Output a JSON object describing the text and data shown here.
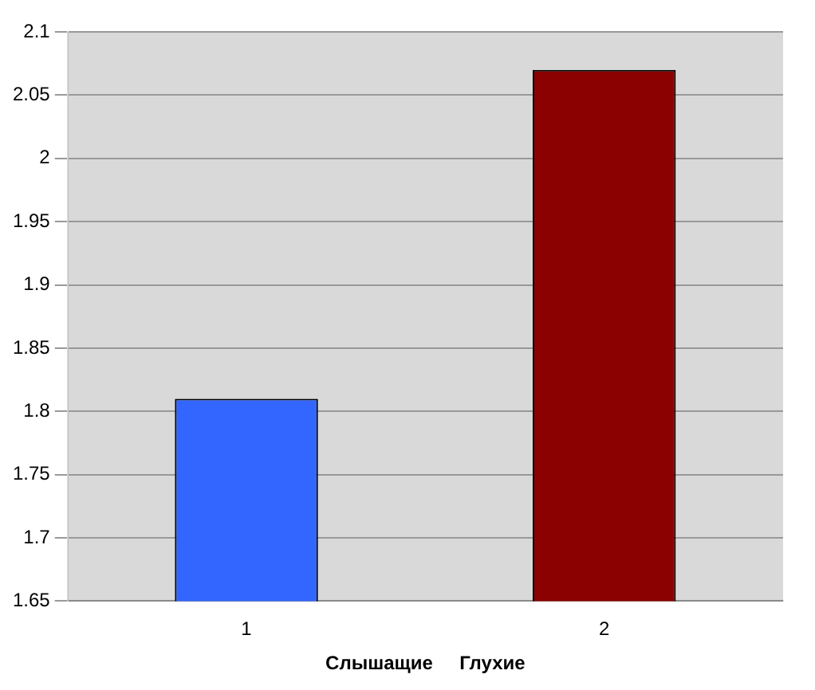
{
  "chart_data": {
    "type": "bar",
    "xlabel": "Слышащие     Глухие",
    "categories": [
      "1",
      "2"
    ],
    "values": [
      1.81,
      2.07
    ],
    "colors": [
      "#3366ff",
      "#8b0000"
    ],
    "ylim": [
      1.65,
      2.1
    ],
    "yticks": [
      1.65,
      1.7,
      1.75,
      1.8,
      1.85,
      1.9,
      1.95,
      2,
      2.05,
      2.1
    ],
    "grid": "y",
    "legend": false
  }
}
